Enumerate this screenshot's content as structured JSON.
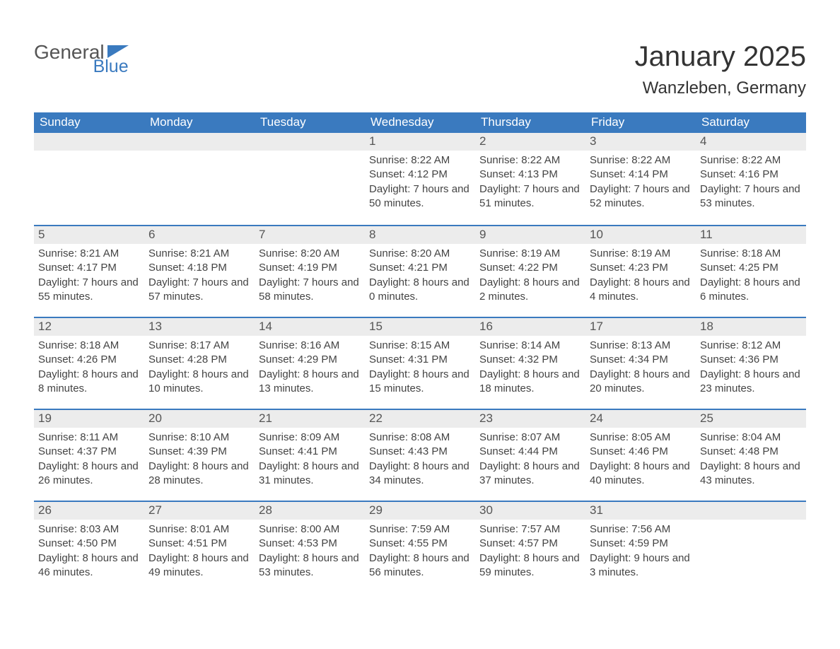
{
  "brand": {
    "part1": "General",
    "part2": "Blue",
    "triangle_color": "#3a7abf"
  },
  "title": "January 2025",
  "location": "Wanzleben, Germany",
  "colors": {
    "header_bg": "#3a7abf",
    "header_text": "#ffffff",
    "daynum_bg": "#ececec",
    "row_border": "#3a7abf",
    "body_text": "#444444",
    "page_bg": "#ffffff"
  },
  "weekdays": [
    "Sunday",
    "Monday",
    "Tuesday",
    "Wednesday",
    "Thursday",
    "Friday",
    "Saturday"
  ],
  "weeks": [
    [
      null,
      null,
      null,
      {
        "n": "1",
        "sr": "8:22 AM",
        "ss": "4:12 PM",
        "dl": "7 hours and 50 minutes."
      },
      {
        "n": "2",
        "sr": "8:22 AM",
        "ss": "4:13 PM",
        "dl": "7 hours and 51 minutes."
      },
      {
        "n": "3",
        "sr": "8:22 AM",
        "ss": "4:14 PM",
        "dl": "7 hours and 52 minutes."
      },
      {
        "n": "4",
        "sr": "8:22 AM",
        "ss": "4:16 PM",
        "dl": "7 hours and 53 minutes."
      }
    ],
    [
      {
        "n": "5",
        "sr": "8:21 AM",
        "ss": "4:17 PM",
        "dl": "7 hours and 55 minutes."
      },
      {
        "n": "6",
        "sr": "8:21 AM",
        "ss": "4:18 PM",
        "dl": "7 hours and 57 minutes."
      },
      {
        "n": "7",
        "sr": "8:20 AM",
        "ss": "4:19 PM",
        "dl": "7 hours and 58 minutes."
      },
      {
        "n": "8",
        "sr": "8:20 AM",
        "ss": "4:21 PM",
        "dl": "8 hours and 0 minutes."
      },
      {
        "n": "9",
        "sr": "8:19 AM",
        "ss": "4:22 PM",
        "dl": "8 hours and 2 minutes."
      },
      {
        "n": "10",
        "sr": "8:19 AM",
        "ss": "4:23 PM",
        "dl": "8 hours and 4 minutes."
      },
      {
        "n": "11",
        "sr": "8:18 AM",
        "ss": "4:25 PM",
        "dl": "8 hours and 6 minutes."
      }
    ],
    [
      {
        "n": "12",
        "sr": "8:18 AM",
        "ss": "4:26 PM",
        "dl": "8 hours and 8 minutes."
      },
      {
        "n": "13",
        "sr": "8:17 AM",
        "ss": "4:28 PM",
        "dl": "8 hours and 10 minutes."
      },
      {
        "n": "14",
        "sr": "8:16 AM",
        "ss": "4:29 PM",
        "dl": "8 hours and 13 minutes."
      },
      {
        "n": "15",
        "sr": "8:15 AM",
        "ss": "4:31 PM",
        "dl": "8 hours and 15 minutes."
      },
      {
        "n": "16",
        "sr": "8:14 AM",
        "ss": "4:32 PM",
        "dl": "8 hours and 18 minutes."
      },
      {
        "n": "17",
        "sr": "8:13 AM",
        "ss": "4:34 PM",
        "dl": "8 hours and 20 minutes."
      },
      {
        "n": "18",
        "sr": "8:12 AM",
        "ss": "4:36 PM",
        "dl": "8 hours and 23 minutes."
      }
    ],
    [
      {
        "n": "19",
        "sr": "8:11 AM",
        "ss": "4:37 PM",
        "dl": "8 hours and 26 minutes."
      },
      {
        "n": "20",
        "sr": "8:10 AM",
        "ss": "4:39 PM",
        "dl": "8 hours and 28 minutes."
      },
      {
        "n": "21",
        "sr": "8:09 AM",
        "ss": "4:41 PM",
        "dl": "8 hours and 31 minutes."
      },
      {
        "n": "22",
        "sr": "8:08 AM",
        "ss": "4:43 PM",
        "dl": "8 hours and 34 minutes."
      },
      {
        "n": "23",
        "sr": "8:07 AM",
        "ss": "4:44 PM",
        "dl": "8 hours and 37 minutes."
      },
      {
        "n": "24",
        "sr": "8:05 AM",
        "ss": "4:46 PM",
        "dl": "8 hours and 40 minutes."
      },
      {
        "n": "25",
        "sr": "8:04 AM",
        "ss": "4:48 PM",
        "dl": "8 hours and 43 minutes."
      }
    ],
    [
      {
        "n": "26",
        "sr": "8:03 AM",
        "ss": "4:50 PM",
        "dl": "8 hours and 46 minutes."
      },
      {
        "n": "27",
        "sr": "8:01 AM",
        "ss": "4:51 PM",
        "dl": "8 hours and 49 minutes."
      },
      {
        "n": "28",
        "sr": "8:00 AM",
        "ss": "4:53 PM",
        "dl": "8 hours and 53 minutes."
      },
      {
        "n": "29",
        "sr": "7:59 AM",
        "ss": "4:55 PM",
        "dl": "8 hours and 56 minutes."
      },
      {
        "n": "30",
        "sr": "7:57 AM",
        "ss": "4:57 PM",
        "dl": "8 hours and 59 minutes."
      },
      {
        "n": "31",
        "sr": "7:56 AM",
        "ss": "4:59 PM",
        "dl": "9 hours and 3 minutes."
      },
      null
    ]
  ],
  "labels": {
    "sunrise": "Sunrise: ",
    "sunset": "Sunset: ",
    "daylight": "Daylight: "
  }
}
